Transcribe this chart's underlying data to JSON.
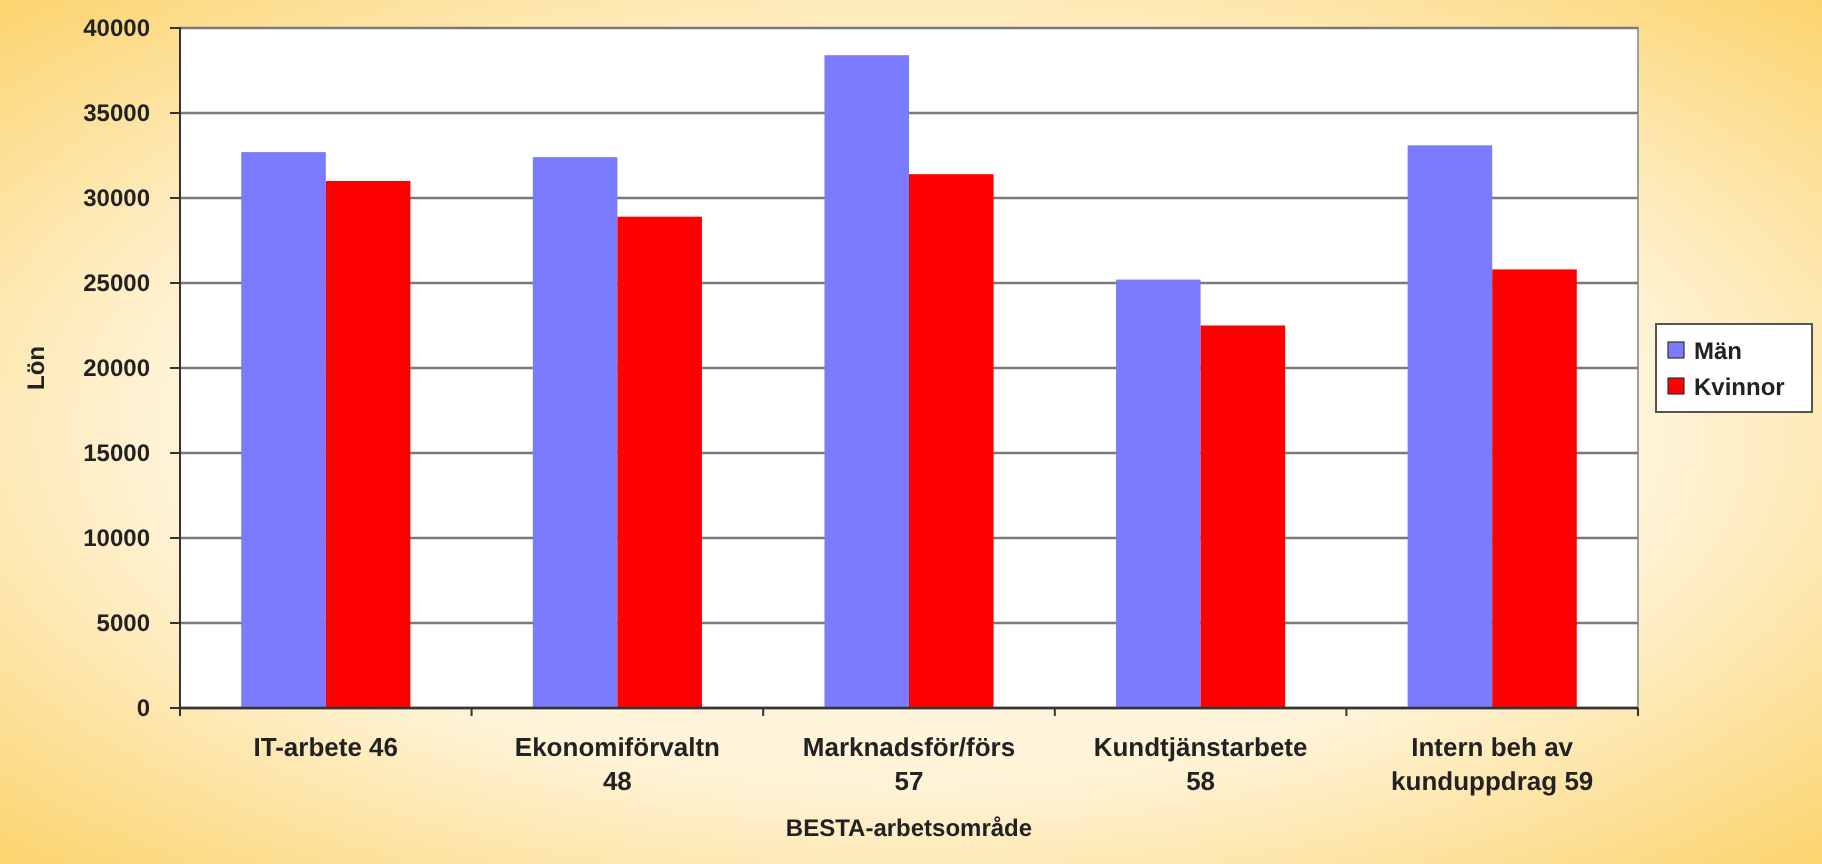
{
  "chart_data": {
    "type": "bar",
    "xlabel": "BESTA-arbetsområde",
    "ylabel": "Lön",
    "categories": [
      "IT-arbete 46",
      "Ekonomiförvaltn 48",
      "Marknadsför/förs 57",
      "Kundtjänstarbete 58",
      "Intern beh av kunduppdrag 59"
    ],
    "series": [
      {
        "name": "Män",
        "color": "#7b7bff",
        "values": [
          32700,
          32400,
          38400,
          25200,
          33100
        ]
      },
      {
        "name": "Kvinnor",
        "color": "#ff0000",
        "values": [
          31000,
          28900,
          31400,
          22500,
          25800
        ]
      }
    ],
    "ylim": [
      0,
      40000
    ],
    "yticks": [
      0,
      5000,
      10000,
      15000,
      20000,
      25000,
      30000,
      35000,
      40000
    ],
    "grid": "y",
    "legend": "right"
  }
}
